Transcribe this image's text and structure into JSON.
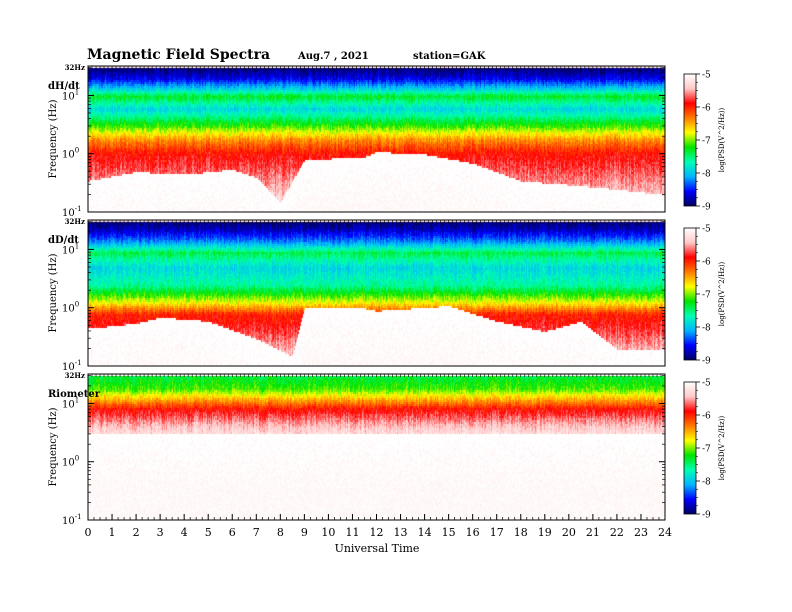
{
  "header": {
    "title": "Magnetic  Field  Spectra",
    "date": "Aug.7  , 2021",
    "station": "station=GAK"
  },
  "chart_data": {
    "type": "heatmap",
    "xlabel": "Universal Time",
    "xlim": [
      0,
      24
    ],
    "xticks": [
      "0",
      "1",
      "2",
      "3",
      "4",
      "5",
      "6",
      "7",
      "8",
      "9",
      "10",
      "11",
      "12",
      "13",
      "14",
      "15",
      "16",
      "17",
      "18",
      "19",
      "20",
      "21",
      "22",
      "23",
      "24"
    ],
    "ylabel": "Frequency  (Hz)",
    "ylim": [
      0.1,
      32
    ],
    "yscale": "log",
    "top_label": "32Hz",
    "colorbar": {
      "label": "log(PSD(V^2/Hz))",
      "ticks": [
        "-5",
        "-6",
        "-7",
        "-8",
        "-9"
      ],
      "range": [
        -9,
        -5
      ],
      "colors": [
        "#000060",
        "#0000ff",
        "#00b4ff",
        "#00ffb4",
        "#00e400",
        "#ffff00",
        "#ff7a00",
        "#ff0000",
        "#ffc8c8",
        "#ffffff"
      ]
    },
    "panels": [
      {
        "label": "dH/dt",
        "bands": [
          {
            "f": 32,
            "v": -9.0
          },
          {
            "f": 20,
            "v": -8.6
          },
          {
            "f": 13,
            "v": -7.9
          },
          {
            "f": 10,
            "v": -7.3
          },
          {
            "f": 6,
            "v": -7.9
          },
          {
            "f": 3,
            "v": -7.1
          },
          {
            "f": 1.8,
            "v": -6.4
          },
          {
            "f": 1.0,
            "v": -5.9
          },
          {
            "f": 0.1,
            "v": -5.2
          }
        ],
        "transition": [
          {
            "t": 0,
            "f": 0.35
          },
          {
            "t": 2,
            "f": 0.5
          },
          {
            "t": 4,
            "f": 0.45
          },
          {
            "t": 6,
            "f": 0.55
          },
          {
            "t": 7,
            "f": 0.4
          },
          {
            "t": 8,
            "f": 0.15
          },
          {
            "t": 9,
            "f": 0.8
          },
          {
            "t": 11.5,
            "f": 0.9
          },
          {
            "t": 12,
            "f": 1.1
          },
          {
            "t": 14,
            "f": 1.0
          },
          {
            "t": 16,
            "f": 0.7
          },
          {
            "t": 18,
            "f": 0.35
          },
          {
            "t": 20,
            "f": 0.3
          },
          {
            "t": 22,
            "f": 0.25
          },
          {
            "t": 24,
            "f": 0.2
          }
        ]
      },
      {
        "label": "dD/dt",
        "bands": [
          {
            "f": 32,
            "v": -9.0
          },
          {
            "f": 22,
            "v": -8.7
          },
          {
            "f": 14,
            "v": -8.2
          },
          {
            "f": 9,
            "v": -7.4
          },
          {
            "f": 5,
            "v": -7.9
          },
          {
            "f": 2.5,
            "v": -7.6
          },
          {
            "f": 1.3,
            "v": -6.8
          },
          {
            "f": 0.8,
            "v": -6.0
          },
          {
            "f": 0.1,
            "v": -5.2
          }
        ],
        "transition": [
          {
            "t": 0,
            "f": 0.45
          },
          {
            "t": 2,
            "f": 0.55
          },
          {
            "t": 3,
            "f": 0.7
          },
          {
            "t": 5,
            "f": 0.6
          },
          {
            "t": 7,
            "f": 0.3
          },
          {
            "t": 8.5,
            "f": 0.15
          },
          {
            "t": 9,
            "f": 1.0
          },
          {
            "t": 11.5,
            "f": 1.0
          },
          {
            "t": 12,
            "f": 0.9
          },
          {
            "t": 15,
            "f": 1.1
          },
          {
            "t": 17,
            "f": 0.6
          },
          {
            "t": 19,
            "f": 0.4
          },
          {
            "t": 20.5,
            "f": 0.6
          },
          {
            "t": 22,
            "f": 0.2
          },
          {
            "t": 24,
            "f": 0.2
          }
        ]
      },
      {
        "label": "Riometer",
        "bands": [
          {
            "f": 32,
            "v": -7.4
          },
          {
            "f": 18,
            "v": -7.1
          },
          {
            "f": 12,
            "v": -6.5
          },
          {
            "f": 8,
            "v": -5.9
          },
          {
            "f": 4,
            "v": -5.4
          },
          {
            "f": 2,
            "v": -5.1
          },
          {
            "f": 0.1,
            "v": -5.0
          }
        ],
        "transition": [
          {
            "t": 0,
            "f": 3.0
          },
          {
            "t": 24,
            "f": 3.0
          }
        ]
      }
    ]
  }
}
